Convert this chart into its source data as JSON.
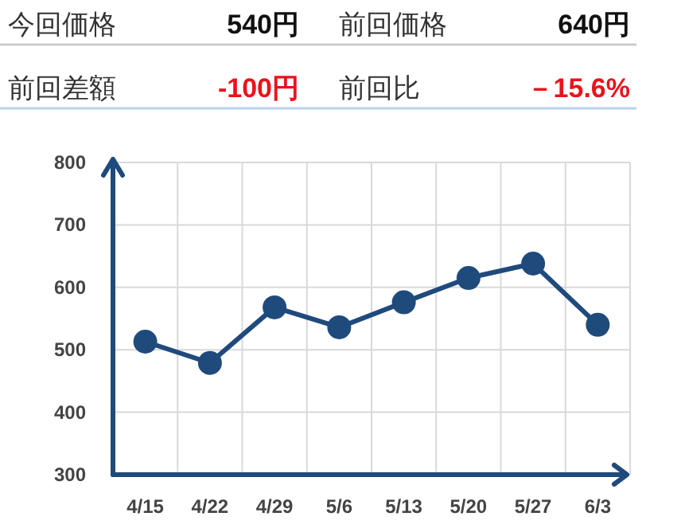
{
  "chart_data": [
    {
      "type": "other",
      "annotations": [
        "今回価格",
        "540円",
        "前回価格",
        "640円",
        "前回差額",
        "-100円",
        "前回比",
        "－15.6%"
      ],
      "colors": [
        "#333333",
        "#111111",
        "#333333",
        "#111111",
        "#333333",
        "#e8141c",
        "#333333",
        "#e8141c"
      ]
    },
    {
      "type": "line",
      "categories": [
        "4/15",
        "4/22",
        "4/29",
        "5/6",
        "5/13",
        "5/20",
        "5/27",
        "6/3"
      ],
      "series": [
        {
          "color": "#1f4a7c",
          "values": [
            513,
            479,
            568,
            536,
            576,
            615,
            638,
            540
          ]
        }
      ],
      "ylim": [
        300,
        800
      ],
      "yticks": [
        300,
        400,
        500,
        600,
        700,
        800
      ],
      "grid": true,
      "marker": "circle",
      "line_style": "solid"
    }
  ]
}
